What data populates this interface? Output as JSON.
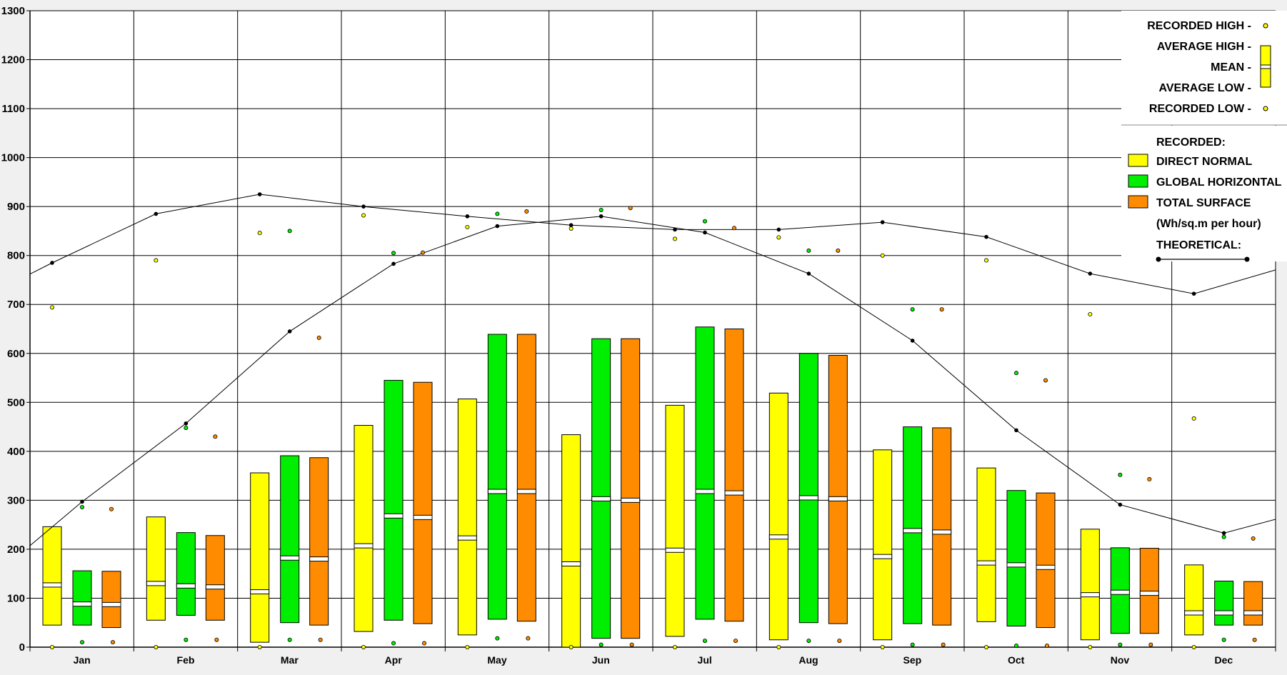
{
  "chart_data": {
    "type": "bar",
    "categories": [
      "Jan",
      "Feb",
      "Mar",
      "Apr",
      "May",
      "Jun",
      "Jul",
      "Aug",
      "Sep",
      "Oct",
      "Nov",
      "Dec"
    ],
    "ylim": [
      0,
      1300
    ],
    "yticks": [
      0,
      100,
      200,
      300,
      400,
      500,
      600,
      700,
      800,
      900,
      1000,
      1100,
      1200,
      1300
    ],
    "grid": true,
    "legend_placement": "top-right",
    "series": [
      {
        "name": "DIRECT NORMAL",
        "color": "#ffff00",
        "high": [
          246,
          266,
          356,
          453,
          507,
          434,
          494,
          519,
          403,
          366,
          241,
          168
        ],
        "low": [
          45,
          55,
          10,
          32,
          25,
          0,
          22,
          15,
          15,
          52,
          15,
          25
        ],
        "mean": [
          127,
          130,
          113,
          207,
          223,
          170,
          198,
          225,
          185,
          172,
          107,
          70
        ],
        "recorded_high": [
          694,
          790,
          846,
          882,
          858,
          855,
          834,
          837,
          800,
          790,
          680,
          467
        ],
        "recorded_low": [
          0,
          0,
          0,
          0,
          0,
          0,
          0,
          0,
          0,
          0,
          0,
          0
        ]
      },
      {
        "name": "GLOBAL HORIZONTAL",
        "color": "#00ee00",
        "high": [
          156,
          234,
          391,
          545,
          639,
          630,
          654,
          600,
          450,
          320,
          203,
          135
        ],
        "low": [
          45,
          65,
          50,
          55,
          57,
          18,
          57,
          50,
          48,
          43,
          28,
          45
        ],
        "mean": [
          88,
          125,
          182,
          268,
          318,
          303,
          318,
          305,
          238,
          168,
          112,
          70
        ],
        "recorded_high": [
          286,
          448,
          850,
          805,
          885,
          893,
          870,
          810,
          690,
          560,
          352,
          225
        ],
        "recorded_low": [
          10,
          15,
          15,
          8,
          18,
          5,
          13,
          13,
          5,
          3,
          5,
          15
        ]
      },
      {
        "name": "TOTAL SURFACE",
        "color": "#ff8c00",
        "high": [
          155,
          228,
          387,
          541,
          639,
          630,
          650,
          596,
          448,
          315,
          202,
          134
        ],
        "low": [
          40,
          55,
          45,
          48,
          53,
          18,
          53,
          48,
          45,
          40,
          28,
          45
        ],
        "mean": [
          87,
          123,
          180,
          265,
          318,
          300,
          315,
          303,
          235,
          163,
          110,
          70
        ],
        "recorded_high": [
          282,
          430,
          632,
          806,
          890,
          897,
          856,
          810,
          690,
          545,
          343,
          222
        ],
        "recorded_low": [
          10,
          15,
          15,
          8,
          18,
          5,
          13,
          13,
          5,
          3,
          5,
          15
        ]
      }
    ],
    "theoretical_direct_normal": [
      785,
      885,
      925,
      900,
      880,
      862,
      853,
      853,
      868,
      838,
      763,
      722
    ],
    "theoretical_global": [
      297,
      457,
      645,
      783,
      860,
      880,
      847,
      763,
      626,
      443,
      291,
      233
    ],
    "legend": {
      "recorded_high": "RECORDED HIGH -",
      "average_high": "AVERAGE HIGH -",
      "mean": "MEAN -",
      "average_low": "AVERAGE LOW -",
      "recorded_low": "RECORDED LOW -",
      "recorded_heading": "RECORDED:",
      "direct_normal": "DIRECT NORMAL",
      "global_horizontal": "GLOBAL HORIZONTAL",
      "total_surface": "TOTAL SURFACE",
      "units": "(Wh/sq.m per hour)",
      "theoretical": "THEORETICAL:"
    }
  }
}
